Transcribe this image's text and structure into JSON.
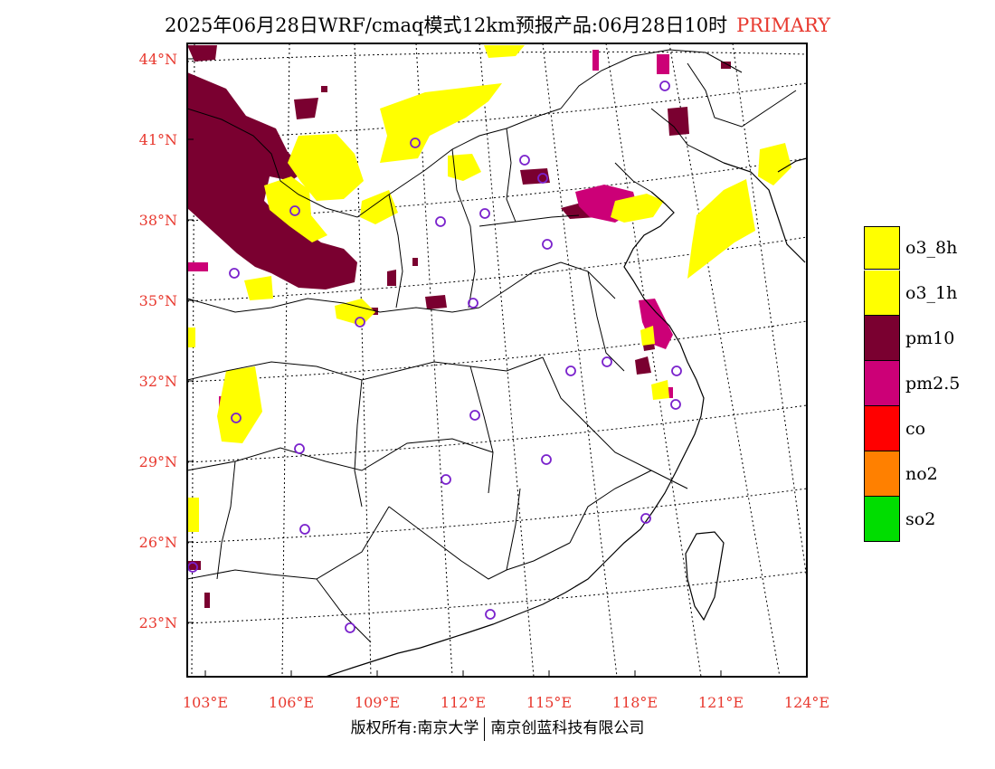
{
  "title": {
    "text": "2025年06月28日WRF/cmaq模式12km预报产品:06月28日10时",
    "tag": "PRIMARY"
  },
  "axes": {
    "lat_labels": [
      "44°N",
      "41°N",
      "38°N",
      "35°N",
      "32°N",
      "29°N",
      "26°N",
      "23°N"
    ],
    "lon_labels": [
      "103°E",
      "106°E",
      "109°E",
      "112°E",
      "115°E",
      "118°E",
      "121°E",
      "124°E"
    ],
    "tick_color": "#e8392f"
  },
  "legend": [
    {
      "label": "o3_8h",
      "color": "#ffff00"
    },
    {
      "label": "o3_1h",
      "color": "#ffff00"
    },
    {
      "label": "pm10",
      "color": "#7a0030"
    },
    {
      "label": "pm2.5",
      "color": "#cc0077"
    },
    {
      "label": "co",
      "color": "#ff0000"
    },
    {
      "label": "no2",
      "color": "#ff8000"
    },
    {
      "label": "so2",
      "color": "#00dd00"
    }
  ],
  "footer": {
    "left": "版权所有:南京大学",
    "right": "南京创蓝科技有限公司"
  }
}
